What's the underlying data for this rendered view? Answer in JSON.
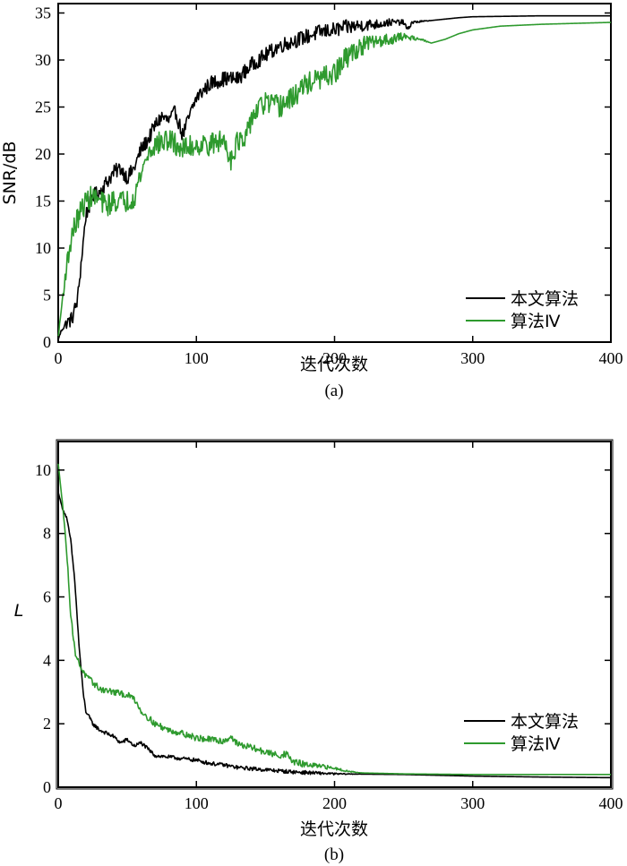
{
  "colors": {
    "proposed": "#000000",
    "algo4": "#2e9a2e",
    "frame": "#000000"
  },
  "chart_data": [
    {
      "id": "a",
      "type": "line",
      "caption": "(a)",
      "xlabel": "迭代次数",
      "ylabel": "SNR/dB",
      "xlim": [
        0,
        400
      ],
      "ylim": [
        0,
        36
      ],
      "xticks": [
        0,
        100,
        200,
        300,
        400
      ],
      "yticks": [
        0,
        5,
        10,
        15,
        20,
        25,
        30,
        35
      ],
      "legend_position": "bottom-right",
      "series": [
        {
          "name": "本文算法",
          "color": "#000000",
          "noise": 0.8,
          "points": [
            [
              0,
              0.3
            ],
            [
              3,
              1.5
            ],
            [
              6,
              2.0
            ],
            [
              10,
              2.5
            ],
            [
              14,
              4.5
            ],
            [
              17,
              9.0
            ],
            [
              20,
              13.5
            ],
            [
              25,
              15.5
            ],
            [
              30,
              16.0
            ],
            [
              35,
              17.0
            ],
            [
              40,
              18.0
            ],
            [
              45,
              18.5
            ],
            [
              50,
              17.5
            ],
            [
              55,
              18.5
            ],
            [
              60,
              20.5
            ],
            [
              65,
              21.5
            ],
            [
              70,
              23.0
            ],
            [
              75,
              24.0
            ],
            [
              80,
              23.5
            ],
            [
              85,
              24.5
            ],
            [
              90,
              22.0
            ],
            [
              95,
              24.0
            ],
            [
              100,
              26.0
            ],
            [
              110,
              27.5
            ],
            [
              120,
              28.0
            ],
            [
              130,
              28.0
            ],
            [
              140,
              29.5
            ],
            [
              150,
              30.5
            ],
            [
              160,
              31.5
            ],
            [
              170,
              32.0
            ],
            [
              180,
              32.5
            ],
            [
              190,
              33.0
            ],
            [
              200,
              33.2
            ],
            [
              210,
              33.5
            ],
            [
              220,
              33.7
            ],
            [
              230,
              33.8
            ],
            [
              240,
              34.0
            ],
            [
              250,
              34.0
            ],
            [
              253,
              33.2
            ],
            [
              256,
              34.0
            ],
            [
              270,
              34.2
            ],
            [
              290,
              34.5
            ],
            [
              300,
              34.6
            ],
            [
              350,
              34.7
            ],
            [
              400,
              34.7
            ]
          ]
        },
        {
          "name": "算法Ⅳ",
          "color": "#2e9a2e",
          "noise": 1.2,
          "points": [
            [
              0,
              0.5
            ],
            [
              3,
              4.5
            ],
            [
              6,
              8.0
            ],
            [
              10,
              11.5
            ],
            [
              15,
              13.5
            ],
            [
              20,
              15.0
            ],
            [
              25,
              15.5
            ],
            [
              30,
              15.0
            ],
            [
              35,
              14.5
            ],
            [
              40,
              15.0
            ],
            [
              45,
              15.0
            ],
            [
              50,
              15.0
            ],
            [
              55,
              15.5
            ],
            [
              60,
              18.0
            ],
            [
              65,
              20.0
            ],
            [
              70,
              21.0
            ],
            [
              80,
              21.5
            ],
            [
              90,
              20.5
            ],
            [
              100,
              21.0
            ],
            [
              110,
              21.0
            ],
            [
              120,
              21.5
            ],
            [
              125,
              19.5
            ],
            [
              130,
              21.5
            ],
            [
              135,
              21.0
            ],
            [
              140,
              24.0
            ],
            [
              150,
              25.5
            ],
            [
              160,
              25.0
            ],
            [
              170,
              26.0
            ],
            [
              180,
              27.5
            ],
            [
              190,
              28.0
            ],
            [
              200,
              28.5
            ],
            [
              210,
              30.5
            ],
            [
              220,
              31.5
            ],
            [
              230,
              32.0
            ],
            [
              240,
              32.2
            ],
            [
              250,
              32.5
            ],
            [
              260,
              32.3
            ],
            [
              270,
              31.8
            ],
            [
              280,
              32.2
            ],
            [
              290,
              32.8
            ],
            [
              300,
              33.2
            ],
            [
              320,
              33.6
            ],
            [
              350,
              33.8
            ],
            [
              400,
              34.0
            ]
          ]
        }
      ]
    },
    {
      "id": "b",
      "type": "line",
      "caption": "(b)",
      "xlabel": "迭代次数",
      "ylabel": "L",
      "xlim": [
        0,
        400
      ],
      "ylim": [
        0,
        10.9
      ],
      "xticks": [
        0,
        100,
        200,
        300,
        400
      ],
      "yticks": [
        0,
        2,
        4,
        6,
        8,
        10
      ],
      "legend_position": "bottom-right",
      "series": [
        {
          "name": "本文算法",
          "color": "#000000",
          "noise": 0.06,
          "points": [
            [
              0,
              9.3
            ],
            [
              3,
              8.8
            ],
            [
              6,
              8.5
            ],
            [
              9,
              7.8
            ],
            [
              12,
              6.5
            ],
            [
              15,
              4.5
            ],
            [
              18,
              3.0
            ],
            [
              20,
              2.4
            ],
            [
              25,
              2.0
            ],
            [
              30,
              1.8
            ],
            [
              40,
              1.6
            ],
            [
              45,
              1.4
            ],
            [
              50,
              1.5
            ],
            [
              55,
              1.3
            ],
            [
              60,
              1.4
            ],
            [
              65,
              1.2
            ],
            [
              70,
              1.0
            ],
            [
              80,
              0.95
            ],
            [
              90,
              0.9
            ],
            [
              100,
              0.85
            ],
            [
              110,
              0.75
            ],
            [
              120,
              0.7
            ],
            [
              130,
              0.62
            ],
            [
              150,
              0.55
            ],
            [
              170,
              0.48
            ],
            [
              200,
              0.42
            ],
            [
              250,
              0.4
            ],
            [
              300,
              0.35
            ],
            [
              350,
              0.32
            ],
            [
              400,
              0.3
            ]
          ]
        },
        {
          "name": "算法Ⅳ",
          "color": "#2e9a2e",
          "noise": 0.1,
          "points": [
            [
              0,
              10.2
            ],
            [
              3,
              9.0
            ],
            [
              6,
              7.5
            ],
            [
              9,
              5.5
            ],
            [
              12,
              4.3
            ],
            [
              15,
              3.9
            ],
            [
              20,
              3.5
            ],
            [
              30,
              3.1
            ],
            [
              40,
              3.0
            ],
            [
              50,
              2.9
            ],
            [
              55,
              2.8
            ],
            [
              60,
              2.4
            ],
            [
              70,
              2.0
            ],
            [
              80,
              1.8
            ],
            [
              90,
              1.7
            ],
            [
              100,
              1.55
            ],
            [
              110,
              1.5
            ],
            [
              120,
              1.45
            ],
            [
              125,
              1.6
            ],
            [
              130,
              1.35
            ],
            [
              140,
              1.25
            ],
            [
              150,
              1.1
            ],
            [
              160,
              1.0
            ],
            [
              165,
              1.05
            ],
            [
              170,
              0.8
            ],
            [
              180,
              0.7
            ],
            [
              190,
              0.65
            ],
            [
              200,
              0.6
            ],
            [
              210,
              0.5
            ],
            [
              220,
              0.45
            ],
            [
              250,
              0.42
            ],
            [
              300,
              0.4
            ],
            [
              400,
              0.4
            ]
          ]
        }
      ]
    }
  ]
}
